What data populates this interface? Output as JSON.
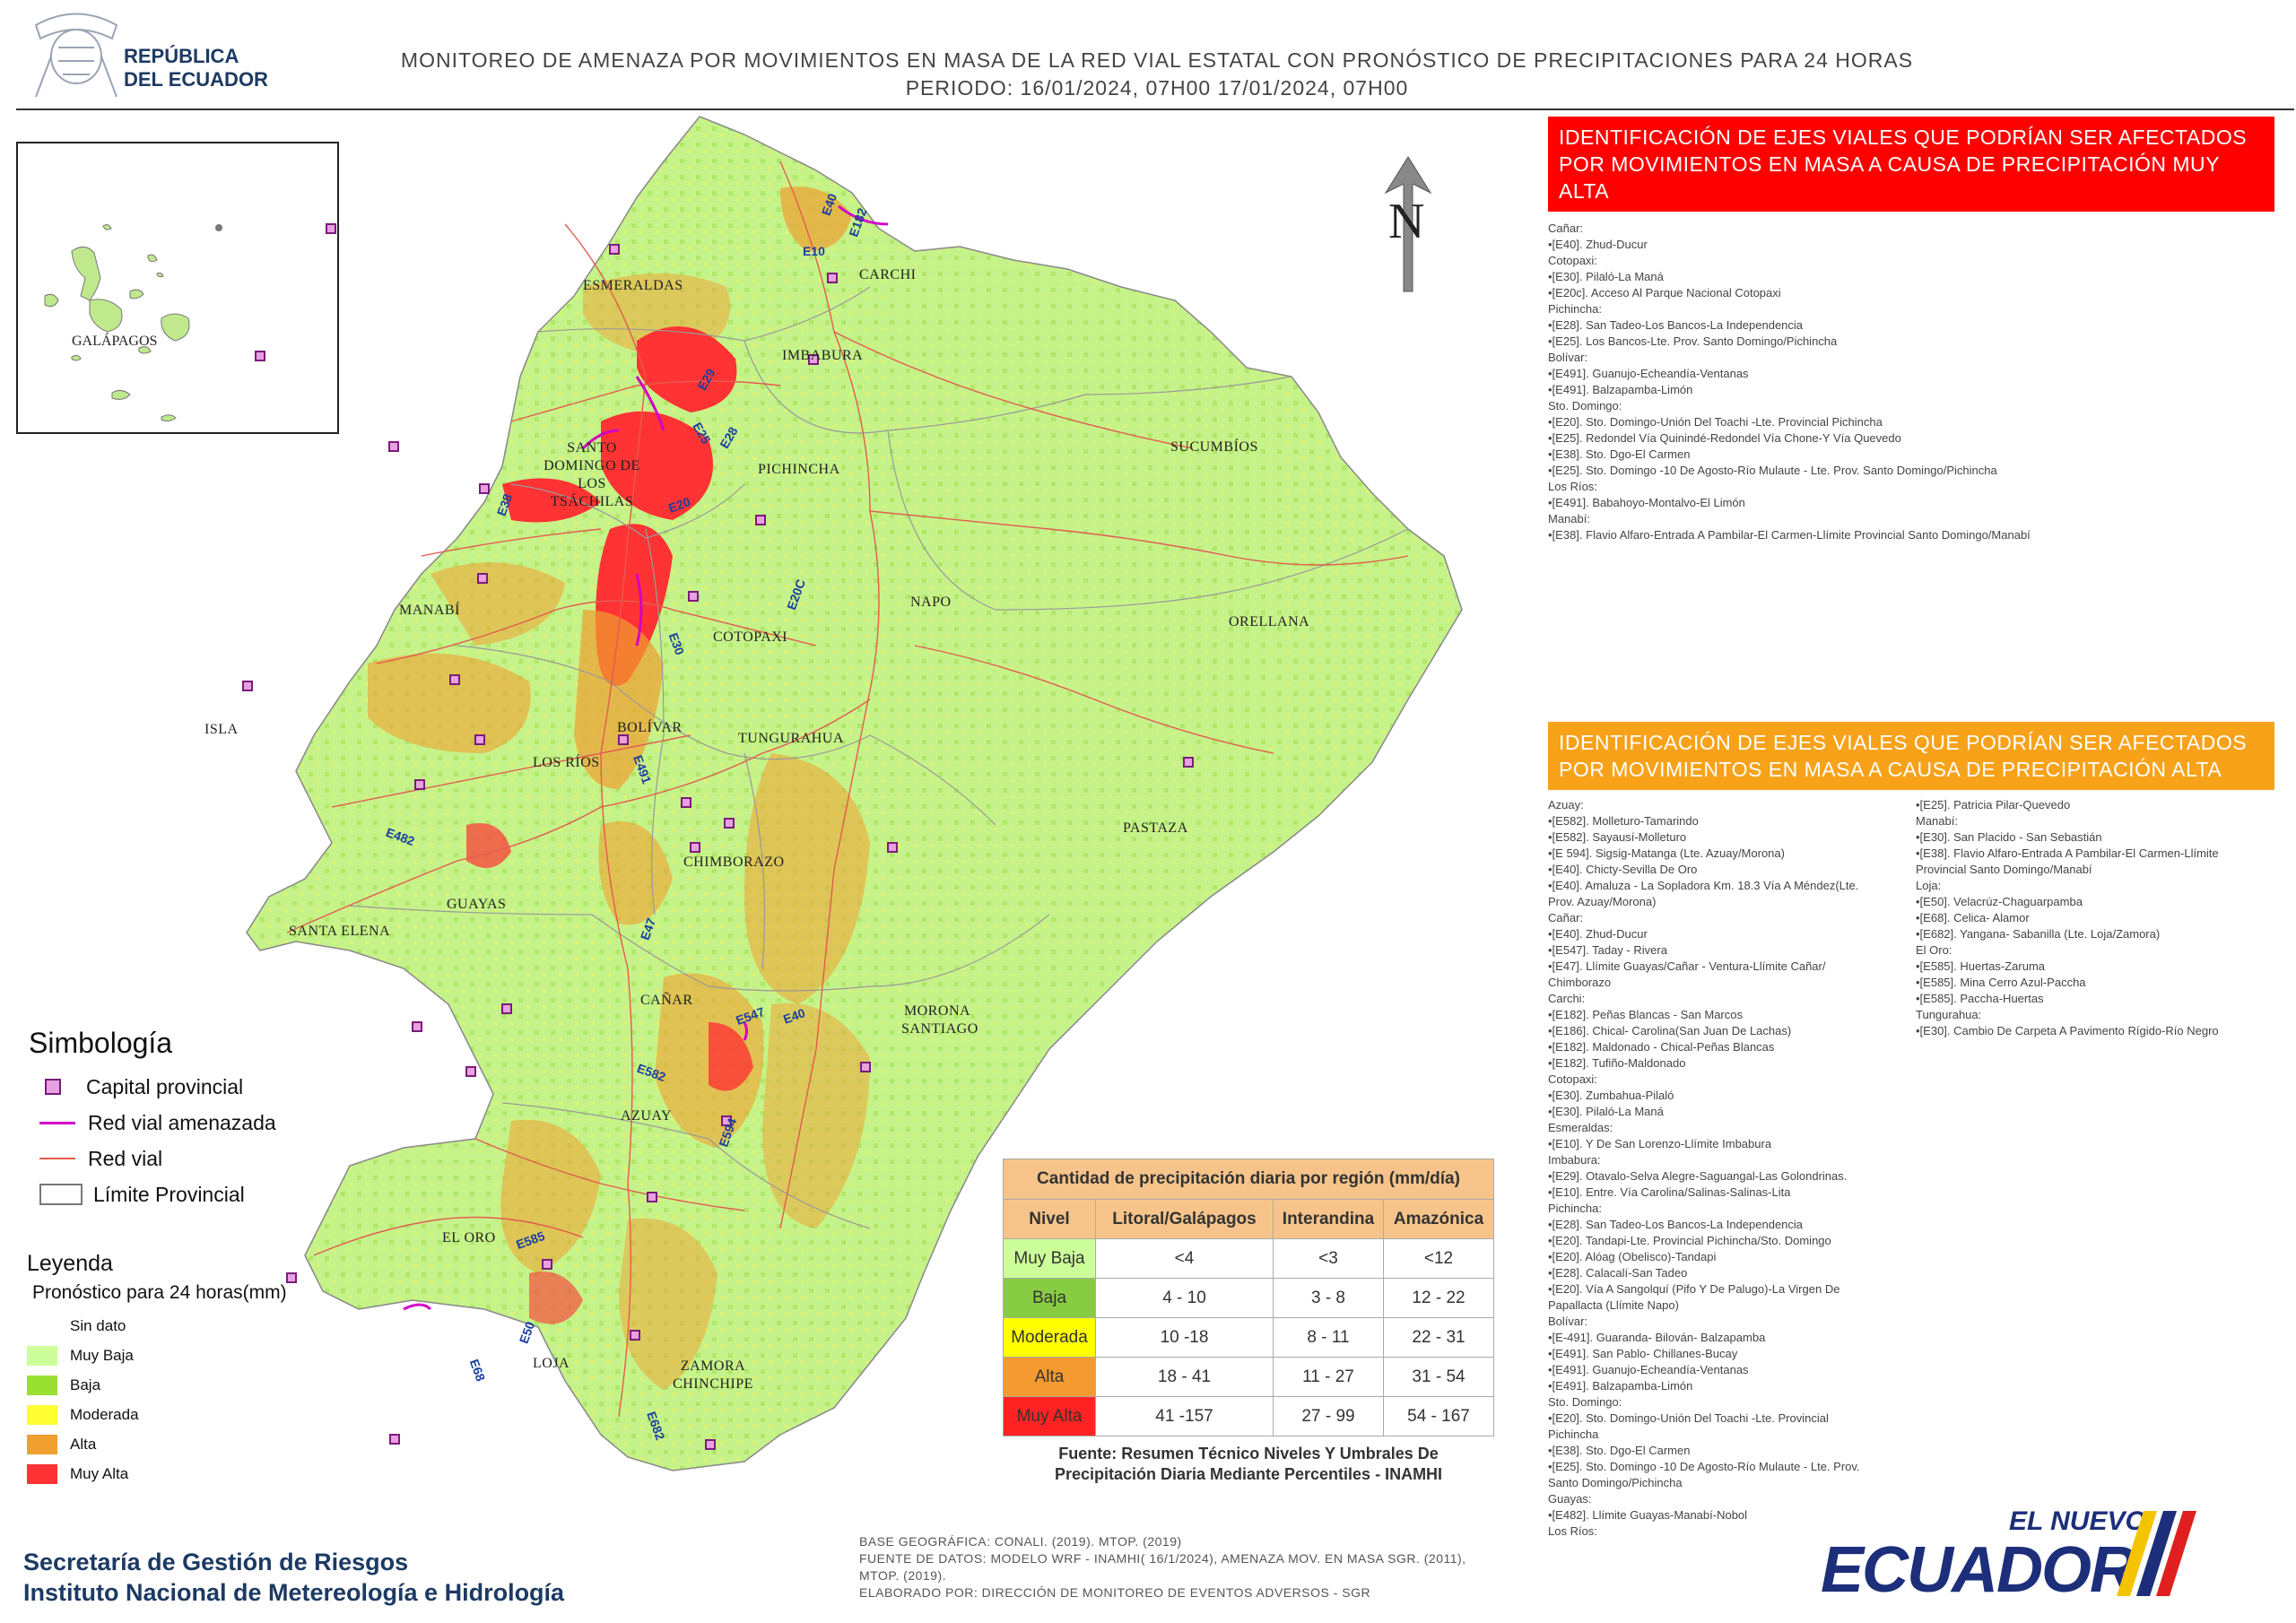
{
  "header": {
    "logo_line1": "REPÚBLICA",
    "logo_line2": "DEL ECUADOR",
    "title_line1": "MONITOREO DE AMENAZA POR MOVIMIENTOS EN MASA DE LA RED VIAL  ESTATAL  CON PRONÓSTICO  DE  PRECIPITACIONES PARA 24 HORAS",
    "title_line2": "PERIODO: 16/01/2024, 07H00 17/01/2024, 07H00"
  },
  "inset": {
    "label": "GALÁPAGOS"
  },
  "north_label": "N",
  "provinces": [
    "ESMERALDAS",
    "CARCHI",
    "IMBABURA",
    "SUCUMBÍOS",
    "SANTO DOMINGO DE LOS TSÁCHILAS",
    "PICHINCHA",
    "MANABÍ",
    "NAPO",
    "ORELLANA",
    "COTOPAXI",
    "BOLÍVAR",
    "LOS RÍOS",
    "TUNGURAHUA",
    "ISLA",
    "PASTAZA",
    "CHIMBORAZO",
    "SANTA ELENA",
    "GUAYAS",
    "CAÑAR",
    "MORONA SANTIAGO",
    "AZUAY",
    "EL ORO",
    "LOJA",
    "ZAMORA CHINCHIPE"
  ],
  "roads": [
    "E40",
    "E182",
    "E10",
    "E29",
    "E28",
    "E25",
    "E20",
    "E38",
    "E20C",
    "E30",
    "E491",
    "E482",
    "E47",
    "E547",
    "E40",
    "E582",
    "E594",
    "E585",
    "E50",
    "E68",
    "E682"
  ],
  "very_high_panel": {
    "heading": "IDENTIFICACIÓN DE EJES VIALES QUE PODRÍAN SER AFECTADOS POR MOVIMIENTOS EN MASA A CAUSA DE PRECIPITACIÓN MUY ALTA",
    "color": "#ff0000",
    "items": [
      "Cañar:",
      "•[E40]. Zhud-Ducur",
      "Cotopaxi:",
      "•[E30]. Pilaló-La Maná",
      "•[E20c]. Acceso Al Parque Nacional Cotopaxi",
      "Pichincha:",
      "•[E28]. San Tadeo-Los Bancos-La Independencia",
      "•[E25]. Los Bancos-Lte. Prov. Santo Domingo/Pichincha",
      "Bolívar:",
      "•[E491]. Guanujo-Echeandía-Ventanas",
      "•[E491]. Balzapamba-Limón",
      "Sto. Domingo:",
      "•[E20]. Sto. Domingo-Unión Del Toachi -Lte. Provincial Pichincha",
      "•[E25]. Redondel Vía Quinindé-Redondel Vía Chone-Y Vía Quevedo",
      "•[E38]. Sto. Dgo-El Carmen",
      "•[E25]. Sto. Domingo -10 De Agosto-Río Mulaute - Lte. Prov. Santo Domingo/Pichincha",
      "Los Ríos:",
      "•[E491]. Babahoyo-Montalvo-El Limón",
      "Manabí:",
      "•[E38]. Flavio Alfaro-Entrada A Pambilar-El Carmen-Llímite Provincial Santo Domingo/Manabí"
    ]
  },
  "high_panel": {
    "heading": "IDENTIFICACIÓN DE EJES VIALES QUE PODRÍAN SER AFECTADOS POR MOVIMIENTOS EN MASA A CAUSA DE PRECIPITACIÓN  ALTA",
    "color": "#f8a21a",
    "col1": [
      "Azuay:",
      "•[E582]. Molleturo-Tamarindo",
      "•[E582]. Sayausí-Molleturo",
      "•[E 594]. Sigsig-Matanga (Lte. Azuay/Morona)",
      "•[E40]. Chicty-Sevilla De Oro",
      "•[E40]. Amaluza - La Sopladora Km. 18.3 Vía A Méndez(Lte.",
      "Prov. Azuay/Morona)",
      "Cañar:",
      "•[E40]. Zhud-Ducur",
      "•[E547]. Taday - Rivera",
      "•[E47]. Llímite Guayas/Cañar - Ventura-Llímite Cañar/",
      "Chimborazo",
      "Carchi:",
      "•[E182]. Peñas Blancas - San Marcos",
      "•[E186]. Chical- Carolina(San Juan De Lachas)",
      "•[E182]. Maldonado - Chical-Peñas Blancas",
      "•[E182]. Tufiño-Maldonado",
      "Cotopaxi:",
      "•[E30]. Zumbahua-Pilaló",
      "•[E30]. Pilaló-La Maná",
      "Esmeraldas:",
      "•[E10]. Y De San Lorenzo-Llímite Imbabura",
      "Imbabura:",
      "•[E29]. Otavalo-Selva Alegre-Saguangal-Las Golondrinas.",
      "•[E10]. Entre. Vía Carolina/Salinas-Salinas-Lita",
      "Pichincha:",
      "•[E28]. San Tadeo-Los Bancos-La Independencia",
      "•[E20]. Tandapi-Lte. Provincial Pichincha/Sto. Domingo",
      "•[E20]. Alóag (Obelisco)-Tandapi",
      "•[E28]. Calacalí-San Tadeo",
      "•[E20]. Vía A Sangolquí (Pifo Y De Palugo)-La Virgen De",
      "Papallacta (Llímite Napo)",
      "Bolívar:",
      "•[E-491]. Guaranda- Bilován- Balzapamba",
      "•[E491]. San Pablo- Chillanes-Bucay",
      "•[E491]. Guanujo-Echeandía-Ventanas",
      "•[E491]. Balzapamba-Limón",
      "Sto. Domingo:",
      "•[E20]. Sto. Domingo-Unión Del Toachi -Lte. Provincial",
      "Pichincha",
      "•[E38]. Sto. Dgo-El Carmen",
      "•[E25]. Sto. Domingo -10 De Agosto-Río Mulaute - Lte. Prov.",
      "Santo Domingo/Pichincha",
      "Guayas:",
      "•[E482]. Llímite Guayas-Manabí-Nobol",
      "Los Ríos:"
    ],
    "col2": [
      "•[E25]. Patricia Pilar-Quevedo",
      "Manabí:",
      "•[E30]. San Placido - San Sebastián",
      "•[E38]. Flavio Alfaro-Entrada A Pambilar-El Carmen-Llímite",
      "Provincial Santo Domingo/Manabí",
      "Loja:",
      "•[E50]. Velacrúz-Chaguarpamba",
      "•[E68]. Celica- Alamor",
      "•[E682]. Yangana- Sabanilla (Lte. Loja/Zamora)",
      "El Oro:",
      "•[E585]. Huertas-Zaruma",
      "•[E585]. Mina Cerro Azul-Paccha",
      "•[E585]. Paccha-Huertas",
      "Tungurahua:",
      "•[E30]. Cambio De Carpeta A Pavimento Rígido-Río Negro"
    ]
  },
  "simbologia": {
    "title": "Simbología",
    "items": [
      "Capital provincial",
      "Red vial amenazada",
      "Red vial",
      "Límite Provincial"
    ]
  },
  "leyenda": {
    "title": "Leyenda",
    "subtitle": "Pronóstico para 24 horas(mm)",
    "items": [
      {
        "label": "Sin dato",
        "color": "#ffffff"
      },
      {
        "label": "Muy Baja",
        "color": "#ccff99"
      },
      {
        "label": "Baja",
        "color": "#99e033"
      },
      {
        "label": "Moderada",
        "color": "#ffff33"
      },
      {
        "label": "Alta",
        "color": "#f0a030"
      },
      {
        "label": "Muy Alta",
        "color": "#ff3333"
      }
    ]
  },
  "precip_table": {
    "title": "Cantidad de precipitación diaria por región (mm/día)",
    "headers": [
      "Nivel",
      "Litoral/Galápagos",
      "Interandina",
      "Amazónica"
    ],
    "rows": [
      {
        "nivel": "Muy Baja",
        "color": "#ccff99",
        "values": [
          "<4",
          "<3",
          "<12"
        ]
      },
      {
        "nivel": "Baja",
        "color": "#88cc44",
        "values": [
          "4 - 10",
          "3 - 8",
          "12 - 22"
        ]
      },
      {
        "nivel": "Moderada",
        "color": "#ffff00",
        "values": [
          "10 -18",
          "8 - 11",
          "22 - 31"
        ]
      },
      {
        "nivel": "Alta",
        "color": "#f59a30",
        "values": [
          "18 - 41",
          "11 - 27",
          "31 - 54"
        ]
      },
      {
        "nivel": "Muy Alta",
        "color": "#ff2222",
        "values": [
          "41 -157",
          "27 - 99",
          "54 - 167"
        ]
      }
    ],
    "source_line1": "Fuente: Resumen Técnico Niveles Y Umbrales De",
    "source_line2": "Precipitación Diaria Mediante Percentiles - INAMHI"
  },
  "footer": {
    "org1": "Secretaría de Gestión de Riesgos",
    "org2": "Instituto Nacional de Metereología e Hidrología",
    "base1": "BASE GEOGRÁFICA: CONALI. (2019). MTOP. (2019)",
    "base2": "FUENTE DE DATOS: MODELO WRF - INAMHI( 16/1/2024),  AMENAZA MOV. EN MASA SGR. (2011),",
    "base3": "MTOP. (2019).",
    "base4": "ELABORADO POR: DIRECCIÓN DE MONITOREO DE EVENTOS ADVERSOS - SGR",
    "brand_small": "EL NUEVO",
    "brand_big": "ECUADOR"
  }
}
